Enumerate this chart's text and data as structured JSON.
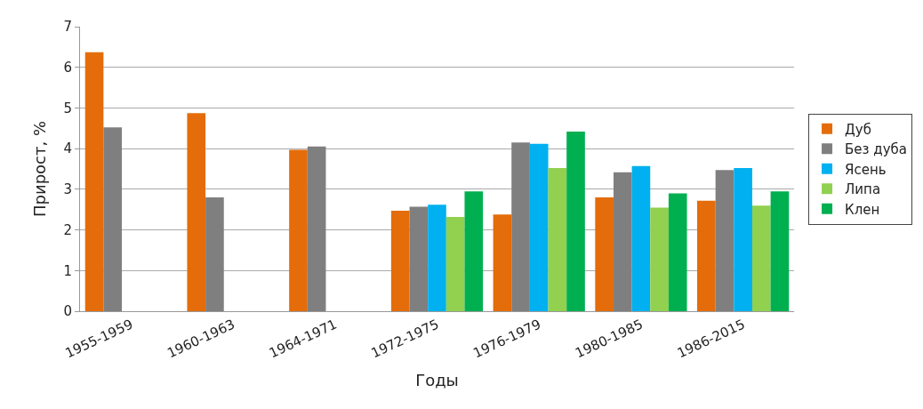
{
  "chart_data": {
    "type": "bar",
    "xlabel": "Годы",
    "ylabel": "Прирост, %",
    "categories": [
      "1955-1959",
      "1960-1963",
      "1964-1971",
      "1972-1975",
      "1976-1979",
      "1980-1985",
      "1986-2015"
    ],
    "series": [
      {
        "name": "Дуб",
        "color": "#e46c0a",
        "values": [
          6.37,
          4.87,
          3.97,
          2.47,
          2.38,
          2.8,
          2.72
        ]
      },
      {
        "name": "Без дуба",
        "color": "#7f7f7f",
        "values": [
          4.52,
          2.8,
          4.05,
          2.57,
          4.15,
          3.42,
          3.47
        ]
      },
      {
        "name": "Ясень",
        "color": "#00b0f0",
        "values": [
          null,
          null,
          null,
          2.62,
          4.12,
          3.57,
          3.52
        ]
      },
      {
        "name": "Липа",
        "color": "#92d050",
        "values": [
          null,
          null,
          null,
          2.32,
          3.52,
          2.55,
          2.6
        ]
      },
      {
        "name": "Клен",
        "color": "#00b050",
        "values": [
          null,
          null,
          null,
          2.95,
          4.42,
          2.9,
          2.95
        ]
      }
    ],
    "ylim": [
      0,
      7
    ],
    "yticks": [
      0,
      1,
      2,
      3,
      4,
      5,
      6,
      7
    ],
    "grid": "y",
    "legend": "right"
  }
}
